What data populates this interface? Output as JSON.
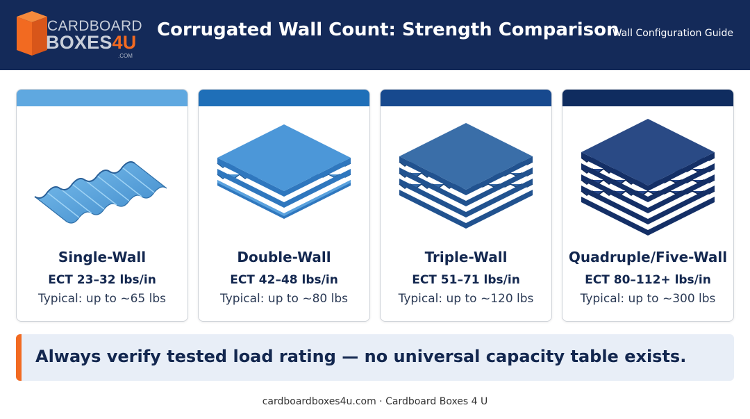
{
  "header": {
    "logo": {
      "line1": "CARDBOARD",
      "line2_main": "BOXES",
      "line2_accent": "4U",
      "com": ".COM",
      "icon": "box-icon",
      "accent_color": "#f26a21"
    },
    "title": "Corrugated Wall Count: Strength Comparison",
    "subtitle": "Wall Configuration Guide",
    "background_color": "#142a59"
  },
  "cards": [
    {
      "name": "Single-Wall",
      "ect": "ECT 23–32 lbs/in",
      "typical": "Typical: up to ~65 lbs",
      "bar_color": "#5fa8e0",
      "illustration": "single-wall-fluted-sheet"
    },
    {
      "name": "Double-Wall",
      "ect": "ECT 42–48 lbs/in",
      "typical": "Typical: up to ~80 lbs",
      "bar_color": "#1f6fb8",
      "illustration": "double-wall-board"
    },
    {
      "name": "Triple-Wall",
      "ect": "ECT 51–71 lbs/in",
      "typical": "Typical: up to ~120 lbs",
      "bar_color": "#17498e",
      "illustration": "triple-wall-board"
    },
    {
      "name": "Quadruple/Five-Wall",
      "ect": "ECT 80–112+ lbs/in",
      "typical": "Typical: up to ~300 lbs",
      "bar_color": "#0f2c5f",
      "illustration": "multi-wall-board"
    }
  ],
  "banner": {
    "text": "Always verify tested load rating — no universal capacity table exists.",
    "accent_color": "#f26a21"
  },
  "footer": {
    "text": "cardboardboxes4u.com · Cardboard Boxes 4 U"
  }
}
